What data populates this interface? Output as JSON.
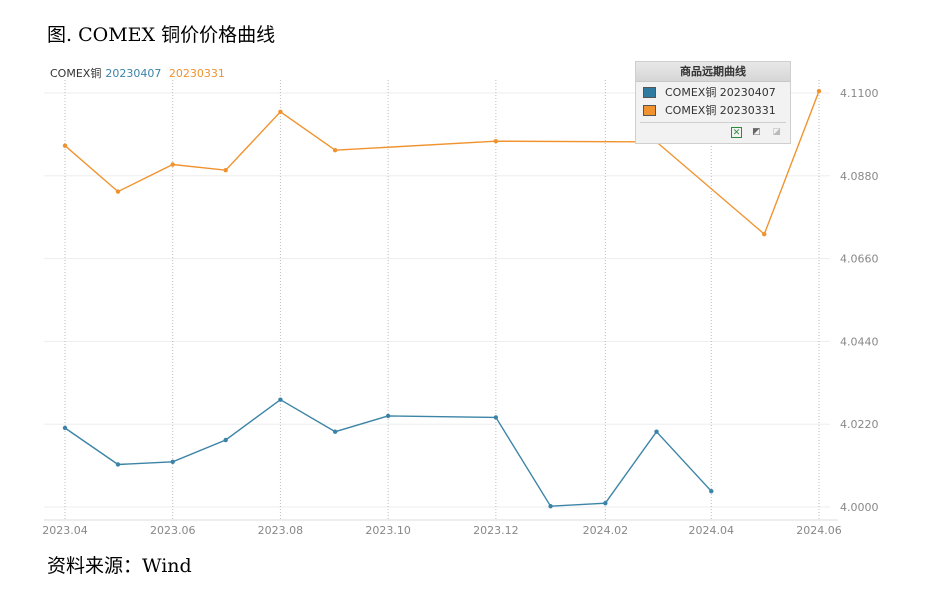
{
  "title": "图. COMEX 铜价价格曲线",
  "source": "资料来源：Wind",
  "colors": {
    "series1": "#3c84a7",
    "series2": "#f0932f",
    "grid": "#b8b8b8"
  },
  "legend_top": {
    "prefix": "COMEX铜",
    "s1": "20230407",
    "s2": "20230331"
  },
  "panel": {
    "title": "商品远期曲线",
    "items": [
      "COMEX铜 20230407",
      "COMEX铜 20230331"
    ],
    "tools": [
      "excel-export-icon",
      "chart-icon",
      "disabled-tool-icon"
    ]
  },
  "chart_data": {
    "type": "line",
    "x_ticks": [
      "2023.04",
      "2023.06",
      "2023.08",
      "2023.10",
      "2023.12",
      "2024.02",
      "2024.04",
      "2024.06"
    ],
    "ylim": [
      4.0,
      4.11
    ],
    "y_ticks": [
      "4.0000",
      "4.0220",
      "4.0440",
      "4.0660",
      "4.0880",
      "4.1100"
    ],
    "series": [
      {
        "name": "COMEX铜 20230407",
        "x": [
          "2023-04-01",
          "2023-05-01",
          "2023-06-01",
          "2023-07-01",
          "2023-08-01",
          "2023-09-01",
          "2023-10-01",
          "2023-12-01",
          "2024-01-01",
          "2024-02-01",
          "2024-03-01",
          "2024-04-01"
        ],
        "y": [
          4.021,
          4.0113,
          4.012,
          4.0178,
          4.0285,
          4.02,
          4.0242,
          4.0238,
          4.0002,
          4.001,
          4.02,
          4.0042
        ]
      },
      {
        "name": "COMEX铜 20230331",
        "x": [
          "2023-04-01",
          "2023-05-01",
          "2023-06-01",
          "2023-07-01",
          "2023-08-01",
          "2023-09-01",
          "2023-12-01",
          "2024-03-01",
          "2024-05-01",
          "2024-06-01"
        ],
        "y": [
          4.096,
          4.0838,
          4.091,
          4.0895,
          4.105,
          4.0948,
          4.0972,
          4.097,
          4.0725,
          4.1105
        ]
      }
    ]
  }
}
